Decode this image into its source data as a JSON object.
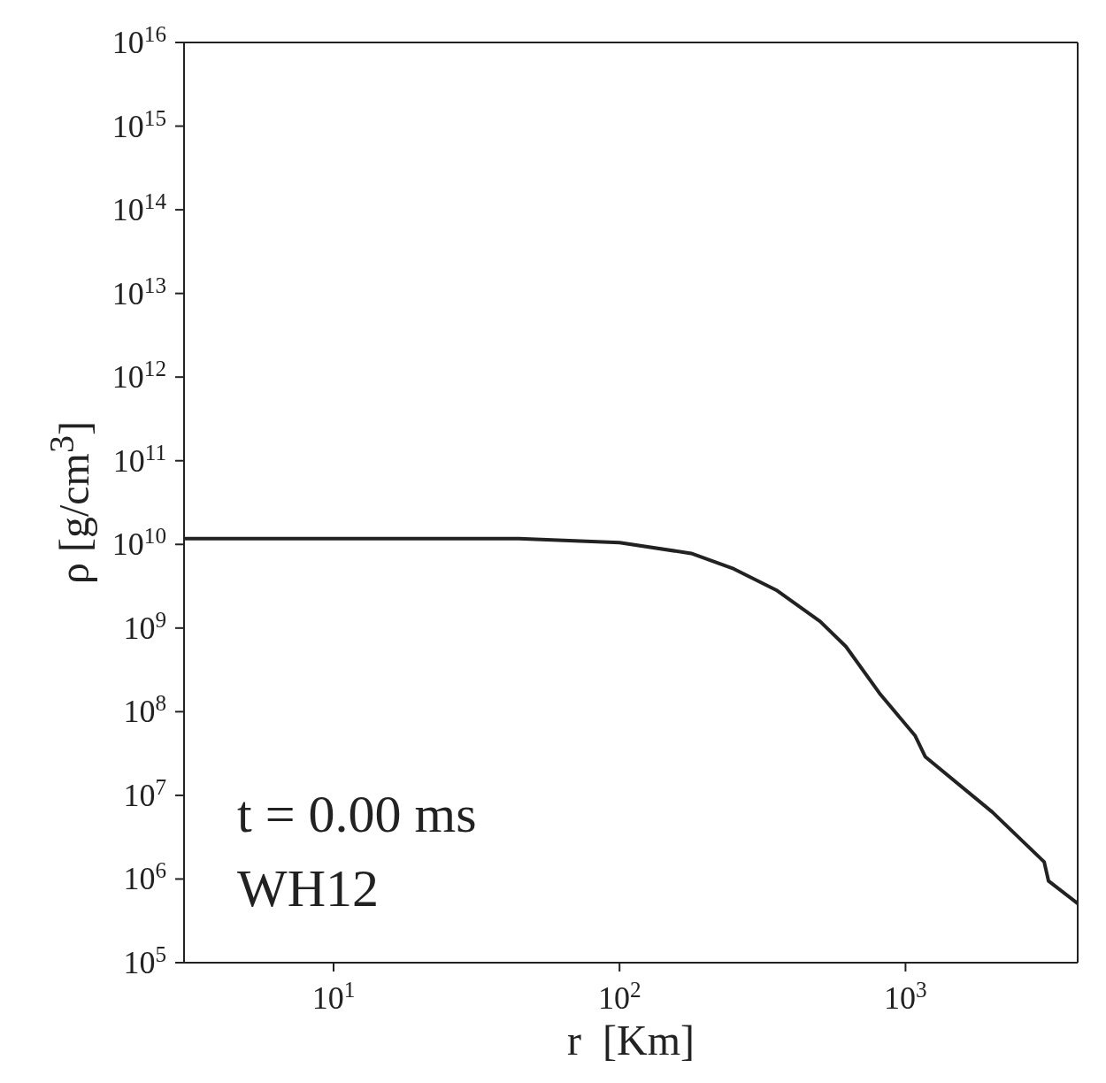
{
  "chart_data": {
    "type": "line",
    "xlabel": "r  [Km]",
    "ylabel": "ρ  [g/cm$^{3}$]",
    "x": [
      3,
      44.5,
      100,
      178,
      251,
      356,
      503,
      619,
      818,
      1079,
      1172,
      2013,
      3054,
      3162,
      4000
    ],
    "series": [
      {
        "color": "#222222",
        "values": [
          11700000000.0,
          11700000000.0,
          10500000000.0,
          7800000000.0,
          5100000000.0,
          2800000000.0,
          1200000000.0,
          600000000.0,
          160000000.0,
          52000000.0,
          29000000.0,
          6300000.0,
          1600000.0,
          950000.0,
          510000.0
        ]
      }
    ],
    "log": "xy",
    "xlim": [
      3,
      4000
    ],
    "ylim": [
      100000,
      1e+16
    ],
    "xticks": [
      {
        "value": 10,
        "label": "10$^{1}$"
      },
      {
        "value": 100,
        "label": "10$^{2}$"
      },
      {
        "value": 1000,
        "label": "10$^{3}$"
      }
    ],
    "yticks": [
      {
        "value": 100000,
        "label": "10$^{5}$"
      },
      {
        "value": 1000000,
        "label": "10$^{6}$"
      },
      {
        "value": 10000000.0,
        "label": "10$^{7}$"
      },
      {
        "value": 100000000.0,
        "label": "10$^{8}$"
      },
      {
        "value": 1000000000.0,
        "label": "10$^{9}$"
      },
      {
        "value": 10000000000.0,
        "label": "10$^{10}$"
      },
      {
        "value": 100000000000.0,
        "label": "10$^{11}$"
      },
      {
        "value": 1000000000000.0,
        "label": "10$^{12}$"
      },
      {
        "value": 10000000000000.0,
        "label": "10$^{13}$"
      },
      {
        "value": 100000000000000.0,
        "label": "10$^{14}$"
      },
      {
        "value": 1000000000000000.0,
        "label": "10$^{15}$"
      },
      {
        "value": 1e+16,
        "label": "10$^{16}$"
      }
    ],
    "annotations": [
      "t = 0.00 ms",
      "WH12"
    ],
    "grid": false,
    "legend": false,
    "marker": "none",
    "line_style": "solid"
  }
}
